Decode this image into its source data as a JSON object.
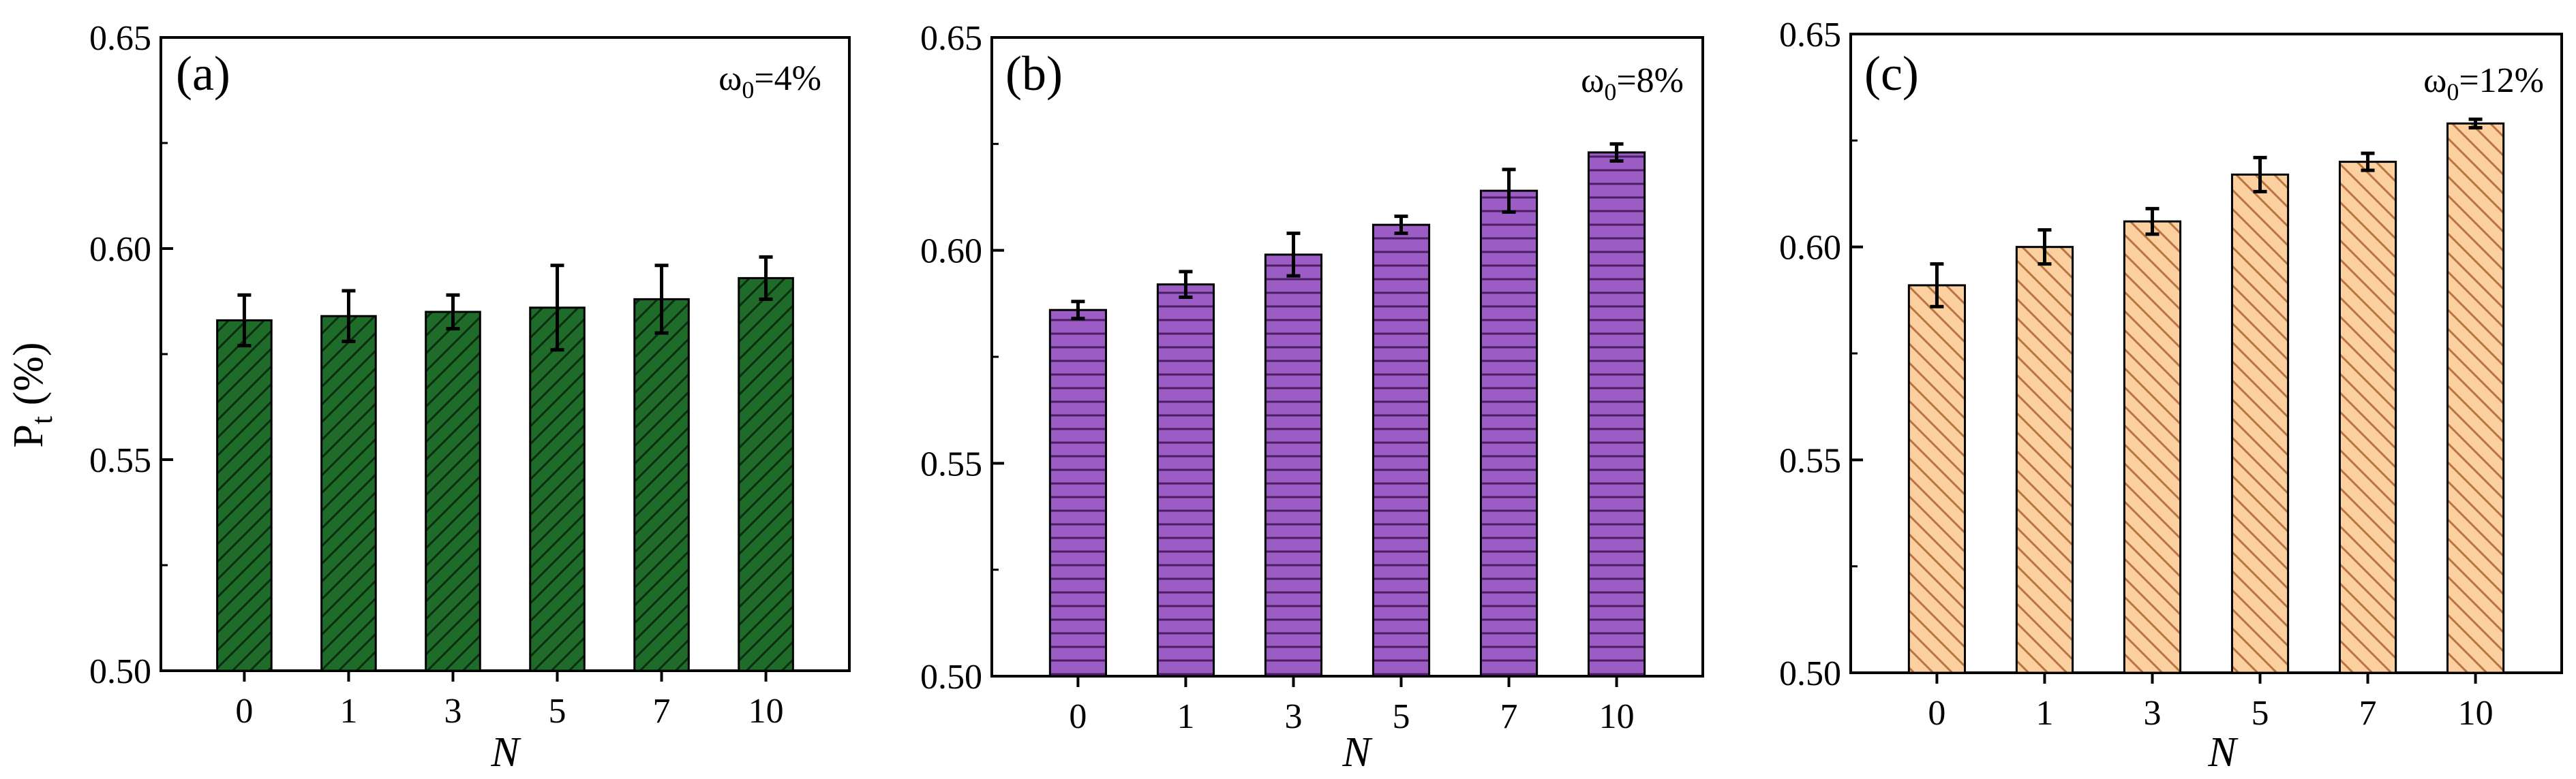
{
  "figure": {
    "ylabel_main": "P",
    "ylabel_sub": "t",
    "ylabel_unit": " (%)",
    "xlabel": "N"
  },
  "chart_data": [
    {
      "type": "bar",
      "panel_label": "(a)",
      "annotation_prefix": "ω",
      "annotation_sub": "0",
      "annotation_value": "=4%",
      "categories": [
        "0",
        "1",
        "3",
        "5",
        "7",
        "10"
      ],
      "values": [
        0.583,
        0.584,
        0.585,
        0.586,
        0.588,
        0.593
      ],
      "errors": [
        0.006,
        0.006,
        0.004,
        0.01,
        0.008,
        0.005
      ],
      "ylim": [
        0.5,
        0.65
      ],
      "yticks": [
        "0.50",
        "0.55",
        "0.60",
        "0.65"
      ],
      "fill_color": "#1e6b2a",
      "hatch": "diagonal-up",
      "grid": false
    },
    {
      "type": "bar",
      "panel_label": "(b)",
      "annotation_prefix": "ω",
      "annotation_sub": "0",
      "annotation_value": "=8%",
      "categories": [
        "0",
        "1",
        "3",
        "5",
        "7",
        "10"
      ],
      "values": [
        0.586,
        0.592,
        0.599,
        0.606,
        0.614,
        0.623
      ],
      "errors": [
        0.002,
        0.003,
        0.005,
        0.002,
        0.005,
        0.002
      ],
      "ylim": [
        0.5,
        0.65
      ],
      "yticks": [
        "0.50",
        "0.55",
        "0.60",
        "0.65"
      ],
      "fill_color": "#9b5cc4",
      "hatch": "horizontal",
      "grid": false
    },
    {
      "type": "bar",
      "panel_label": "(c)",
      "annotation_prefix": "ω",
      "annotation_sub": "0",
      "annotation_value": "=12%",
      "categories": [
        "0",
        "1",
        "3",
        "5",
        "7",
        "10"
      ],
      "values": [
        0.591,
        0.6,
        0.606,
        0.617,
        0.62,
        0.629
      ],
      "errors": [
        0.005,
        0.004,
        0.003,
        0.004,
        0.002,
        0.001
      ],
      "ylim": [
        0.5,
        0.65
      ],
      "yticks": [
        "0.50",
        "0.55",
        "0.60",
        "0.65"
      ],
      "fill_color": "#fbcfa0",
      "hatch": "diagonal-down",
      "grid": false
    }
  ]
}
